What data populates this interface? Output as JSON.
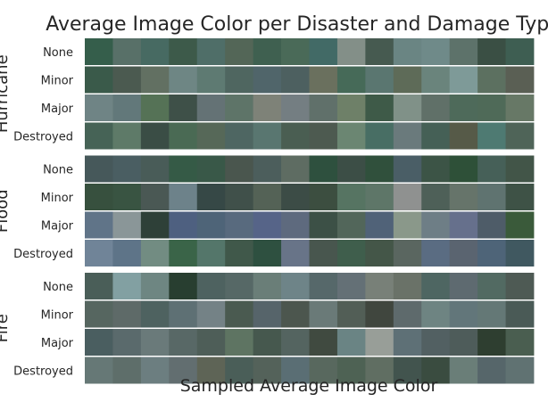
{
  "chart_data": {
    "type": "heatmap",
    "title": "Average Image Color per Disaster and Damage Type",
    "xlabel": "Sampled Average Image Color",
    "groups": [
      {
        "name": "Hurricane",
        "rows": [
          {
            "label": "None",
            "colors": [
              "#355e4b",
              "#587068",
              "#476a62",
              "#3d5a4a",
              "#4f6e68",
              "#536657",
              "#3f6050",
              "#4a6a58",
              "#426a66",
              "#838f88",
              "#465a50",
              "#6a8583",
              "#6f8a89",
              "#5d726a",
              "#3a4f44",
              "#3e5e52"
            ]
          },
          {
            "label": "Minor",
            "colors": [
              "#3a5a4a",
              "#4b5a50",
              "#627062",
              "#6e8684",
              "#5e7a72",
              "#4f6660",
              "#50656a",
              "#4d6060",
              "#6a705e",
              "#466a58",
              "#5a7670",
              "#5e6b58",
              "#6a847c",
              "#7e9a98",
              "#5c7060",
              "#5a5f54"
            ]
          },
          {
            "label": "Major",
            "colors": [
              "#6f8485",
              "#62787a",
              "#557256",
              "#3e5048",
              "#647275",
              "#5e7468",
              "#7e8278",
              "#747e82",
              "#60706a",
              "#6e8068",
              "#3e5a48",
              "#809188",
              "#607068",
              "#4e6a5a",
              "#4f6a58",
              "#677866"
            ]
          },
          {
            "label": "Destroyed",
            "colors": [
              "#466356",
              "#5e7a68",
              "#3a4d45",
              "#4a6a54",
              "#566858",
              "#4e6662",
              "#597670",
              "#4a5e52",
              "#4d5a50",
              "#6b8672",
              "#486e64",
              "#6a7a7c",
              "#456056",
              "#565a48",
              "#4e7a72",
              "#4f6458"
            ]
          }
        ]
      },
      {
        "name": "Flood",
        "rows": [
          {
            "label": "None",
            "colors": [
              "#46585a",
              "#4a5e62",
              "#495c58",
              "#355a46",
              "#395848",
              "#4a564e",
              "#4c5e5c",
              "#5e6c62",
              "#2e503e",
              "#3c4e46",
              "#30503c",
              "#4a5e66",
              "#3c5446",
              "#2e5038",
              "#466058",
              "#425548"
            ]
          },
          {
            "label": "Minor",
            "colors": [
              "#37503e",
              "#395442",
              "#4a5854",
              "#6d828a",
              "#364846",
              "#40504a",
              "#546256",
              "#3c4c46",
              "#3c4e40",
              "#567462",
              "#5e7668",
              "#8f9190",
              "#4e6058",
              "#66746a",
              "#5f7370",
              "#3e5246"
            ]
          },
          {
            "label": "Major",
            "colors": [
              "#607488",
              "#8a9698",
              "#2e4038",
              "#4e6080",
              "#4e6478",
              "#586a7e",
              "#566488",
              "#5e6a7e",
              "#3c5046",
              "#52665a",
              "#506278",
              "#8a988a",
              "#6e7e86",
              "#66708c",
              "#4e5c68",
              "#3a5a3a"
            ]
          },
          {
            "label": "Destroyed",
            "colors": [
              "#708498",
              "#5e7488",
              "#728c82",
              "#3a6448",
              "#54766a",
              "#40584a",
              "#2e5040",
              "#687488",
              "#48564e",
              "#3f5e4c",
              "#445648",
              "#5a6660",
              "#5a6c82",
              "#5a6470",
              "#4e6478",
              "#405860"
            ]
          }
        ]
      },
      {
        "name": "Fire",
        "rows": [
          {
            "label": "None",
            "colors": [
              "#4a5e58",
              "#82a0a2",
              "#6e8682",
              "#283e30",
              "#4e6260",
              "#566866",
              "#6a7e78",
              "#6e8488",
              "#56686a",
              "#647076",
              "#788078",
              "#6a7268",
              "#4e6662",
              "#5e6a70",
              "#526a62",
              "#4e5a54"
            ]
          },
          {
            "label": "Minor",
            "colors": [
              "#566660",
              "#5e6a68",
              "#4e6260",
              "#5e7074",
              "#748286",
              "#4a5a50",
              "#56646a",
              "#4c564e",
              "#6a7a78",
              "#525e56",
              "#40463e",
              "#5e6a6c",
              "#6e8482",
              "#62767a",
              "#647876",
              "#4a5a56"
            ]
          },
          {
            "label": "Major",
            "colors": [
              "#4a5e60",
              "#5a6a6c",
              "#6a7a7a",
              "#586866",
              "#4e5e58",
              "#5e7462",
              "#46584e",
              "#546460",
              "#404a40",
              "#6a8484",
              "#989e98",
              "#5e7076",
              "#526062",
              "#4e5c5a",
              "#2e3e30",
              "#4a5e50"
            ]
          },
          {
            "label": "Destroyed",
            "colors": [
              "#667876",
              "#5e6e6a",
              "#6c7e80",
              "#626e70",
              "#5e6456",
              "#4a5e58",
              "#54625a",
              "#5a6e74",
              "#58685e",
              "#4e6254",
              "#606e62",
              "#42544e",
              "#3a4c40",
              "#6a7e78",
              "#56666a",
              "#607272"
            ]
          }
        ]
      }
    ]
  }
}
